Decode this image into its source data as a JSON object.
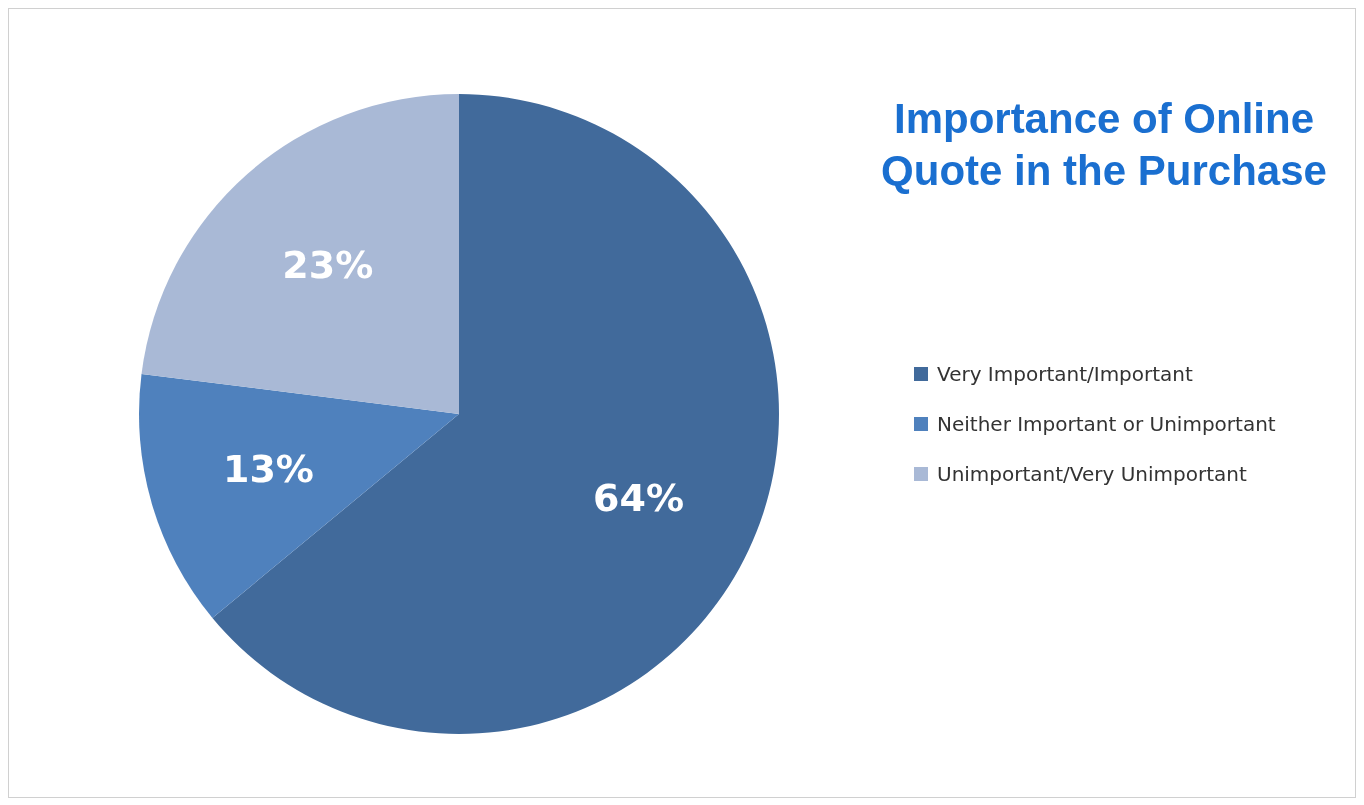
{
  "chart_data": {
    "type": "pie",
    "title": "Importance of Online Quote in the Purchase",
    "categories": [
      "Very Important/Important",
      "Neither Important or Unimportant",
      "Unimportant/Very Unimportant"
    ],
    "values": [
      64,
      13,
      23
    ],
    "colors": [
      "#416a9b",
      "#4f81bd",
      "#a9b9d6"
    ],
    "value_labels": [
      "64%",
      "13%",
      "23%"
    ],
    "legend": "right"
  }
}
